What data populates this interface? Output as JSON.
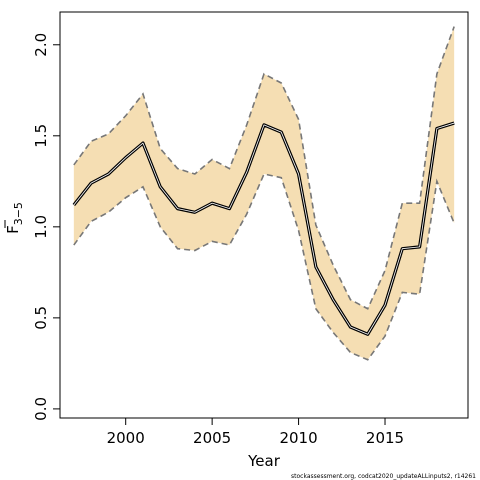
{
  "chart_data": {
    "type": "line",
    "xlabel": "Year",
    "ylabel": {
      "main": "F",
      "subscript": "3−5",
      "overline": true
    },
    "xlim": [
      1996.2,
      2019.8
    ],
    "ylim": [
      -0.05,
      2.18
    ],
    "xticks": [
      {
        "value": 2000,
        "label": "2000"
      },
      {
        "value": 2005,
        "label": "2005"
      },
      {
        "value": 2010,
        "label": "2010"
      },
      {
        "value": 2015,
        "label": "2015"
      }
    ],
    "yticks": [
      {
        "value": 0.0,
        "label": "0.0"
      },
      {
        "value": 0.5,
        "label": "0.5"
      },
      {
        "value": 1.0,
        "label": "1.0"
      },
      {
        "value": 1.5,
        "label": "1.5"
      },
      {
        "value": 2.0,
        "label": "2.0"
      }
    ],
    "x": [
      1997,
      1998,
      1999,
      2000,
      2001,
      2002,
      2003,
      2004,
      2005,
      2006,
      2007,
      2008,
      2009,
      2010,
      2011,
      2012,
      2013,
      2014,
      2015,
      2016,
      2017,
      2018,
      2019
    ],
    "series": [
      {
        "role": "estimate",
        "values": [
          1.12,
          1.24,
          1.29,
          1.38,
          1.46,
          1.22,
          1.1,
          1.08,
          1.13,
          1.1,
          1.3,
          1.56,
          1.52,
          1.29,
          0.78,
          0.6,
          0.45,
          0.41,
          0.57,
          0.88,
          0.89,
          1.54,
          1.57
        ]
      },
      {
        "role": "upper",
        "values": [
          1.34,
          1.47,
          1.51,
          1.61,
          1.73,
          1.43,
          1.32,
          1.29,
          1.37,
          1.32,
          1.56,
          1.84,
          1.79,
          1.59,
          1.01,
          0.79,
          0.6,
          0.55,
          0.76,
          1.13,
          1.13,
          1.84,
          2.1
        ]
      },
      {
        "role": "lower",
        "values": [
          0.9,
          1.03,
          1.08,
          1.16,
          1.22,
          1.0,
          0.88,
          0.87,
          0.92,
          0.9,
          1.07,
          1.29,
          1.27,
          0.98,
          0.55,
          0.42,
          0.31,
          0.27,
          0.4,
          0.64,
          0.63,
          1.25,
          1.02
        ]
      }
    ],
    "colors": {
      "band": "#f5deb3",
      "estimate": "#000000",
      "bounds": "#777777"
    },
    "grid": false,
    "legend": "none"
  },
  "footer": "stockassessment.org, codcat2020_updateALLinputs2, r14261"
}
